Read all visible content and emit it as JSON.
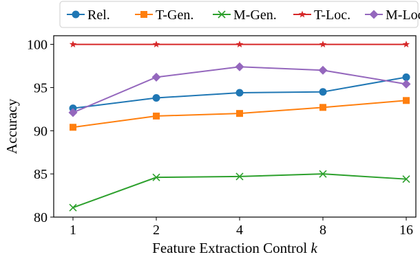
{
  "chart_data": {
    "type": "line",
    "title": "",
    "xlabel": "Feature Extraction Control",
    "xlabel_var": "k",
    "ylabel": "Accuracy",
    "categories": [
      "1",
      "2",
      "4",
      "8",
      "16"
    ],
    "ylim": [
      80,
      101
    ],
    "yticks": [
      80,
      85,
      90,
      95,
      100
    ],
    "grid": false,
    "legend_position": "top",
    "series": [
      {
        "name": "Rel.",
        "color": "#1f77b4",
        "marker": "circle",
        "values": [
          92.6,
          93.8,
          94.4,
          94.5,
          96.2
        ]
      },
      {
        "name": "T-Gen.",
        "color": "#ff7f0e",
        "marker": "square",
        "values": [
          90.4,
          91.7,
          92.0,
          92.7,
          93.5
        ]
      },
      {
        "name": "M-Gen.",
        "color": "#2ca02c",
        "marker": "x",
        "values": [
          81.1,
          84.6,
          84.7,
          85.0,
          84.4
        ]
      },
      {
        "name": "T-Loc.",
        "color": "#d62728",
        "marker": "star",
        "values": [
          100,
          100,
          100,
          100,
          100
        ]
      },
      {
        "name": "M-Loc.",
        "color": "#9467bd",
        "marker": "diamond",
        "values": [
          92.1,
          96.2,
          97.4,
          97.0,
          95.4
        ]
      }
    ]
  }
}
